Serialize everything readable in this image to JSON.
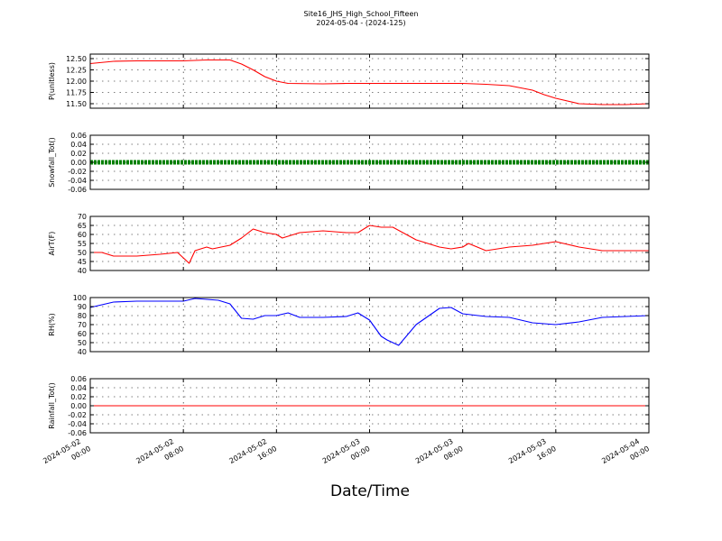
{
  "figure": {
    "title": "Site16_JHS_High_School_Fifteen",
    "subtitle": "2024-05-04 - (2024-125)",
    "xlabel": "Date/Time"
  },
  "x_ticks": [
    {
      "l1": "2024-05-02",
      "l2": "00:00"
    },
    {
      "l1": "2024-05-02",
      "l2": "08:00"
    },
    {
      "l1": "2024-05-02",
      "l2": "16:00"
    },
    {
      "l1": "2024-05-03",
      "l2": "00:00"
    },
    {
      "l1": "2024-05-03",
      "l2": "08:00"
    },
    {
      "l1": "2024-05-03",
      "l2": "16:00"
    },
    {
      "l1": "2024-05-04",
      "l2": "00:00"
    }
  ],
  "chart_data": [
    {
      "type": "line",
      "ylabel": "P(unitless)",
      "ylim": [
        11.4,
        12.6
      ],
      "yticks": [
        "12.50",
        "12.25",
        "12.00",
        "11.75",
        "11.50"
      ],
      "ytick_values": [
        12.5,
        12.25,
        12.0,
        11.75,
        11.5
      ],
      "grid": true,
      "series": [
        {
          "color": "#ff0000",
          "x": [
            "2024-05-02 00:00",
            "2024-05-02 02:00",
            "2024-05-02 04:00",
            "2024-05-02 06:00",
            "2024-05-02 08:00",
            "2024-05-02 10:00",
            "2024-05-02 12:00",
            "2024-05-02 13:00",
            "2024-05-02 14:00",
            "2024-05-02 15:00",
            "2024-05-02 16:00",
            "2024-05-02 17:00",
            "2024-05-02 20:00",
            "2024-05-02 22:00",
            "2024-05-03 00:00",
            "2024-05-03 04:00",
            "2024-05-03 08:00",
            "2024-05-03 10:00",
            "2024-05-03 12:00",
            "2024-05-03 14:00",
            "2024-05-03 15:00",
            "2024-05-03 16:00",
            "2024-05-03 18:00",
            "2024-05-03 20:00",
            "2024-05-03 22:00",
            "2024-05-04 00:00"
          ],
          "y": [
            12.39,
            12.44,
            12.45,
            12.45,
            12.45,
            12.47,
            12.47,
            12.38,
            12.25,
            12.1,
            12.0,
            11.95,
            11.94,
            11.95,
            11.95,
            11.95,
            11.95,
            11.93,
            11.9,
            11.8,
            11.7,
            11.62,
            11.5,
            11.48,
            11.48,
            11.5
          ]
        }
      ]
    },
    {
      "type": "line",
      "ylabel": "Snowfall_Tot()",
      "ylim": [
        -0.06,
        0.06
      ],
      "yticks": [
        "0.06",
        "0.04",
        "0.02",
        "0.00",
        "-0.02",
        "-0.04",
        "-0.06"
      ],
      "ytick_values": [
        0.06,
        0.04,
        0.02,
        0.0,
        -0.02,
        -0.04,
        -0.06
      ],
      "grid": true,
      "series": [
        {
          "color": "#008000",
          "marker": "dots",
          "x": [
            "2024-05-02 00:00",
            "2024-05-04 00:00"
          ],
          "y": [
            0.0,
            0.0
          ]
        }
      ]
    },
    {
      "type": "line",
      "ylabel": "AirT(F)",
      "ylim": [
        40,
        70
      ],
      "yticks": [
        "70",
        "65",
        "60",
        "55",
        "50",
        "45",
        "40"
      ],
      "ytick_values": [
        70,
        65,
        60,
        55,
        50,
        45,
        40
      ],
      "grid": true,
      "series": [
        {
          "color": "#ff0000",
          "x": [
            "2024-05-02 00:00",
            "2024-05-02 01:00",
            "2024-05-02 02:00",
            "2024-05-02 04:00",
            "2024-05-02 06:00",
            "2024-05-02 07:30",
            "2024-05-02 08:30",
            "2024-05-02 09:00",
            "2024-05-02 09:30",
            "2024-05-02 10:00",
            "2024-05-02 10:30",
            "2024-05-02 12:00",
            "2024-05-02 13:00",
            "2024-05-02 14:00",
            "2024-05-02 15:00",
            "2024-05-02 16:00",
            "2024-05-02 16:30",
            "2024-05-02 18:00",
            "2024-05-02 20:00",
            "2024-05-02 22:00",
            "2024-05-02 23:00",
            "2024-05-03 00:00",
            "2024-05-03 01:00",
            "2024-05-03 02:00",
            "2024-05-03 04:00",
            "2024-05-03 06:00",
            "2024-05-03 07:00",
            "2024-05-03 08:00",
            "2024-05-03 08:30",
            "2024-05-03 10:00",
            "2024-05-03 12:00",
            "2024-05-03 14:00",
            "2024-05-03 15:00",
            "2024-05-03 16:00",
            "2024-05-03 18:00",
            "2024-05-03 20:00",
            "2024-05-04 00:00"
          ],
          "y": [
            50,
            50,
            48,
            48,
            49,
            50,
            44,
            51,
            52,
            53,
            52,
            54,
            58,
            63,
            61,
            60,
            58,
            61,
            62,
            61,
            61,
            65,
            64,
            64,
            57,
            53,
            52,
            53,
            55,
            51,
            53,
            54,
            55,
            56,
            53,
            51,
            51
          ]
        }
      ]
    },
    {
      "type": "line",
      "ylabel": "RH(%)",
      "ylim": [
        40,
        100
      ],
      "yticks": [
        "100",
        "90",
        "80",
        "70",
        "60",
        "50",
        "40"
      ],
      "ytick_values": [
        100,
        90,
        80,
        70,
        60,
        50,
        40
      ],
      "grid": true,
      "series": [
        {
          "color": "#0000ff",
          "x": [
            "2024-05-02 00:00",
            "2024-05-02 02:00",
            "2024-05-02 04:00",
            "2024-05-02 06:00",
            "2024-05-02 08:00",
            "2024-05-02 09:00",
            "2024-05-02 11:00",
            "2024-05-02 12:00",
            "2024-05-02 13:00",
            "2024-05-02 14:00",
            "2024-05-02 15:00",
            "2024-05-02 16:00",
            "2024-05-02 17:00",
            "2024-05-02 18:00",
            "2024-05-02 20:00",
            "2024-05-02 22:00",
            "2024-05-02 23:00",
            "2024-05-03 00:00",
            "2024-05-03 01:00",
            "2024-05-03 01:30",
            "2024-05-03 02:30",
            "2024-05-03 04:00",
            "2024-05-03 06:00",
            "2024-05-03 07:00",
            "2024-05-03 08:00",
            "2024-05-03 10:00",
            "2024-05-03 12:00",
            "2024-05-03 14:00",
            "2024-05-03 16:00",
            "2024-05-03 18:00",
            "2024-05-03 20:00",
            "2024-05-04 00:00"
          ],
          "y": [
            89,
            95,
            96,
            96,
            96,
            99,
            97,
            93,
            77,
            76,
            80,
            80,
            83,
            78,
            78,
            79,
            83,
            75,
            57,
            53,
            47,
            70,
            88,
            89,
            82,
            79,
            78,
            72,
            70,
            73,
            78,
            80
          ]
        }
      ]
    },
    {
      "type": "line",
      "ylabel": "Rainfall_Tot()",
      "ylim": [
        -0.06,
        0.06
      ],
      "yticks": [
        "0.06",
        "0.04",
        "0.02",
        "0.00",
        "-0.02",
        "-0.04",
        "-0.06"
      ],
      "ytick_values": [
        0.06,
        0.04,
        0.02,
        0.0,
        -0.02,
        -0.04,
        -0.06
      ],
      "grid": true,
      "series": [
        {
          "color": "#ff0000",
          "x": [
            "2024-05-02 00:00",
            "2024-05-04 00:00"
          ],
          "y": [
            0.0,
            0.0
          ]
        }
      ]
    }
  ]
}
